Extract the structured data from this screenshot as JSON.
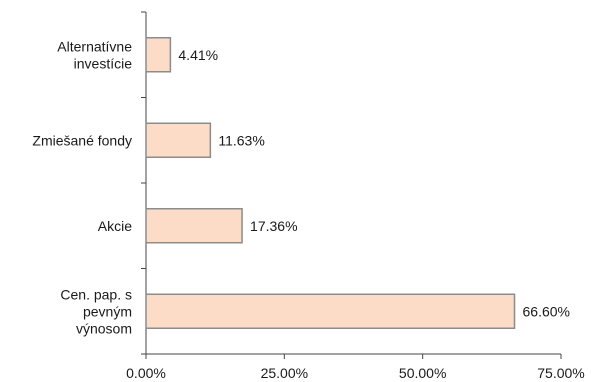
{
  "chart_data": {
    "type": "bar",
    "orientation": "horizontal",
    "categories": [
      [
        "Alternatívne",
        "investície"
      ],
      [
        "Zmiešané fondy"
      ],
      [
        "Akcie"
      ],
      [
        "Cen. pap. s",
        "pevným",
        "výnosom"
      ]
    ],
    "values": [
      4.41,
      11.63,
      17.36,
      66.6
    ],
    "value_labels": [
      "4.41%",
      "11.63%",
      "17.36%",
      "66.60%"
    ],
    "xlim": [
      0,
      75
    ],
    "xticks": [
      0,
      25,
      50,
      75
    ],
    "xtick_labels": [
      "0.00%",
      "25.00%",
      "50.00%",
      "75.00%"
    ],
    "grid": false,
    "legend": "none",
    "colors": {
      "bar_fill": "#fcdcc6",
      "bar_stroke": "#8c8c8c",
      "axis": "#444444"
    }
  }
}
